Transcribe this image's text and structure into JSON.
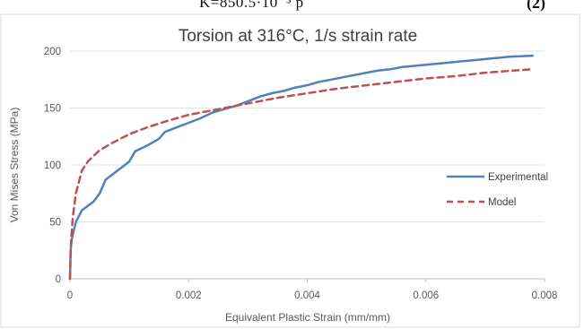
{
  "page_fragment": {
    "equation_text": "K=850.5·10⁻³ p",
    "equation_number": "(2)"
  },
  "chart_data": {
    "type": "line",
    "title": "Torsion at 316°C, 1/s strain rate",
    "xlabel": "Equivalent Plastic Strain (mm/mm)",
    "ylabel": "Von Mises Stress (MPa)",
    "xlim": [
      0,
      0.008
    ],
    "ylim": [
      0,
      200
    ],
    "x_ticks": [
      "0",
      "0.002",
      "0.004",
      "0.006",
      "0.008"
    ],
    "y_ticks": [
      "0",
      "50",
      "100",
      "150",
      "200"
    ],
    "grid": "horizontal",
    "legend_position": "right",
    "series": [
      {
        "name": "Experimental",
        "color": "#4f81bd",
        "style": "solid",
        "x": [
          0,
          1e-05,
          3e-05,
          0.0001,
          0.0002,
          0.0004,
          0.0005,
          0.0006,
          0.0008,
          0.001,
          0.0011,
          0.0013,
          0.0015,
          0.0016,
          0.0018,
          0.002,
          0.0022,
          0.0024,
          0.0026,
          0.0028,
          0.003,
          0.0032,
          0.0034,
          0.0036,
          0.0038,
          0.004,
          0.0042,
          0.0044,
          0.0046,
          0.0048,
          0.005,
          0.0052,
          0.0054,
          0.0056,
          0.0058,
          0.006,
          0.0062,
          0.0064,
          0.0066,
          0.0068,
          0.007,
          0.0072,
          0.0074,
          0.0076,
          0.0078
        ],
        "y": [
          0,
          25,
          35,
          50,
          60,
          68,
          75,
          87,
          95,
          103,
          112,
          117,
          123,
          129,
          133,
          137,
          141,
          146,
          149,
          152,
          156,
          160,
          163,
          165,
          168,
          170,
          173,
          175,
          177,
          179,
          181,
          183,
          184,
          186,
          187,
          188,
          189,
          190,
          191,
          192,
          193,
          194,
          195,
          195.5,
          196
        ]
      },
      {
        "name": "Model",
        "color": "#c0504d",
        "style": "dashed",
        "x": [
          0,
          2e-05,
          5e-05,
          0.0001,
          0.0002,
          0.0003,
          0.0005,
          0.0007,
          0.001,
          0.0013,
          0.0016,
          0.002,
          0.0025,
          0.003,
          0.0035,
          0.004,
          0.0045,
          0.005,
          0.0055,
          0.006,
          0.0065,
          0.007,
          0.0075,
          0.0078
        ],
        "y": [
          0,
          35,
          55,
          75,
          95,
          103,
          113,
          119,
          127,
          133,
          138,
          144,
          149,
          154,
          159,
          163,
          167,
          170,
          173,
          176,
          178,
          181,
          183,
          184
        ]
      }
    ]
  }
}
